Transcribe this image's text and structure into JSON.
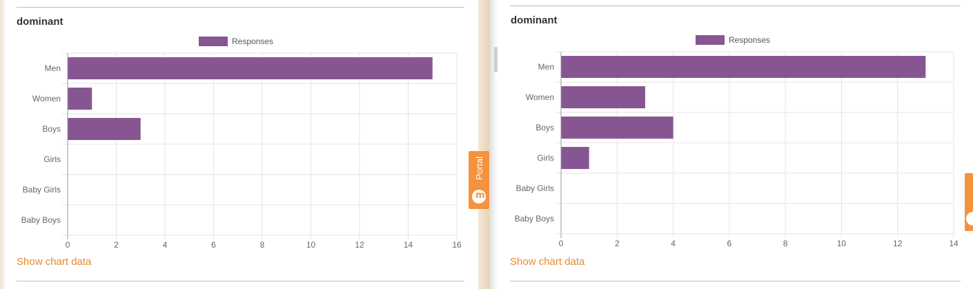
{
  "colors": {
    "bar": "#875692",
    "link": "#e8892c",
    "portal": "#f5923e"
  },
  "panels": [
    {
      "title": "dominant",
      "show_data_label": "Show chart data"
    },
    {
      "title": "dominant",
      "show_data_label": "Show chart data"
    }
  ],
  "portal_tab": {
    "label": "Portal",
    "icon": "portal-cloud-icon"
  },
  "chart_data": [
    {
      "type": "bar",
      "orientation": "horizontal",
      "categories": [
        "Men",
        "Women",
        "Boys",
        "Girls",
        "Baby Girls",
        "Baby Boys"
      ],
      "series": [
        {
          "name": "Responses",
          "values": [
            15,
            1,
            3,
            0,
            0,
            0
          ]
        }
      ],
      "xlim": [
        0,
        16
      ],
      "ticks": [
        0,
        2,
        4,
        6,
        8,
        10,
        12,
        14,
        16
      ],
      "legend": "top-center",
      "grid": true
    },
    {
      "type": "bar",
      "orientation": "horizontal",
      "categories": [
        "Men",
        "Women",
        "Boys",
        "Girls",
        "Baby Girls",
        "Baby Boys"
      ],
      "series": [
        {
          "name": "Responses",
          "values": [
            13,
            3,
            4,
            1,
            0,
            0
          ]
        }
      ],
      "xlim": [
        0,
        14
      ],
      "ticks": [
        0,
        2,
        4,
        6,
        8,
        10,
        12,
        14
      ],
      "legend": "top-center",
      "grid": true
    }
  ]
}
